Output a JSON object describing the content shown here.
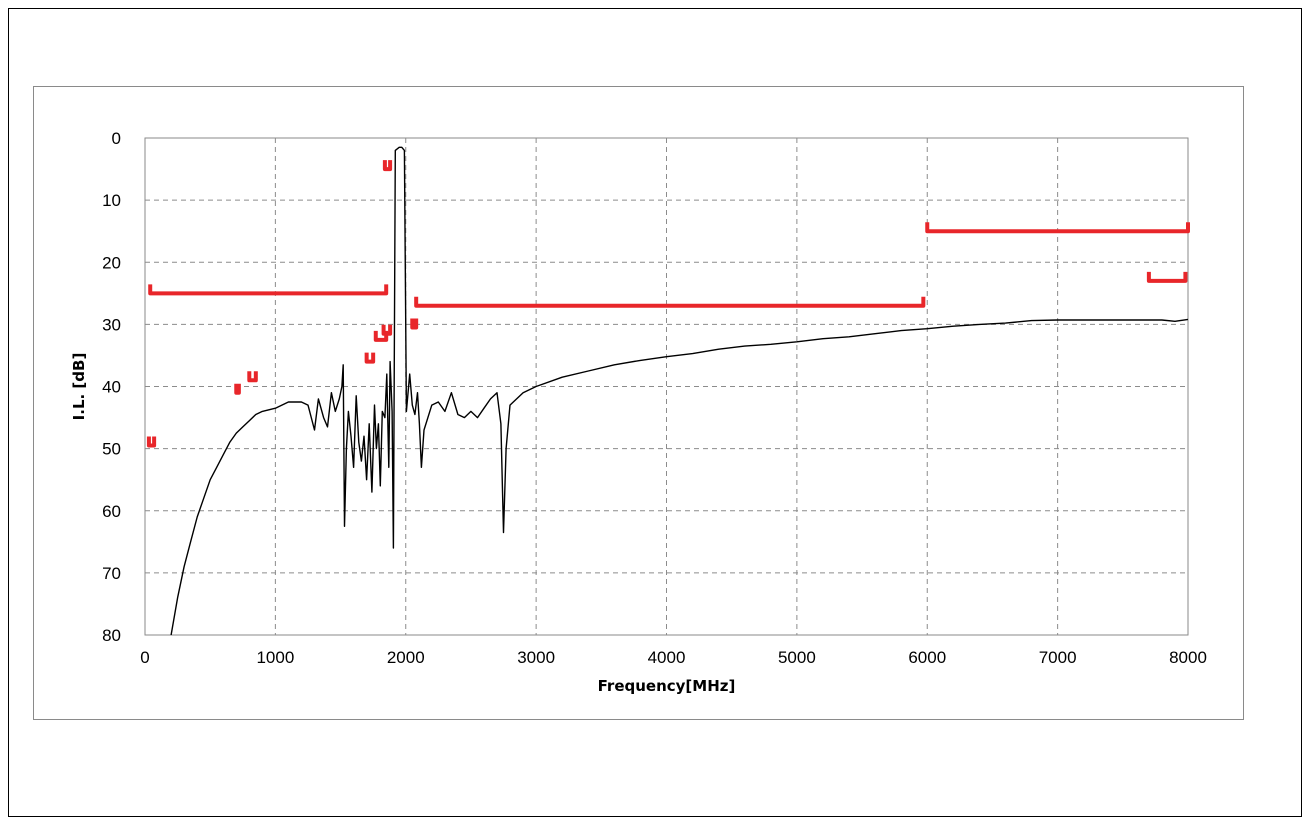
{
  "chart_data": {
    "type": "line",
    "title": "",
    "xlabel": "Frequency[MHz]",
    "ylabel": "I.L. [dB]",
    "xlim": [
      0,
      8000
    ],
    "ylim": [
      0,
      80
    ],
    "y_inverted": true,
    "grid": true,
    "x_ticks": [
      "0",
      "1000",
      "2000",
      "3000",
      "4000",
      "5000",
      "6000",
      "7000",
      "8000"
    ],
    "y_ticks": [
      "0",
      "10",
      "20",
      "30",
      "40",
      "50",
      "60",
      "70",
      "80"
    ],
    "series": [
      {
        "color": "#000000",
        "points": [
          [
            200,
            80
          ],
          [
            250,
            74
          ],
          [
            300,
            69
          ],
          [
            350,
            65
          ],
          [
            400,
            61
          ],
          [
            450,
            58
          ],
          [
            500,
            55
          ],
          [
            550,
            53
          ],
          [
            600,
            51
          ],
          [
            650,
            49
          ],
          [
            700,
            47.5
          ],
          [
            750,
            46.5
          ],
          [
            800,
            45.5
          ],
          [
            850,
            44.5
          ],
          [
            900,
            44
          ],
          [
            1000,
            43.5
          ],
          [
            1100,
            42.5
          ],
          [
            1200,
            42.5
          ],
          [
            1250,
            43
          ],
          [
            1300,
            47
          ],
          [
            1330,
            42
          ],
          [
            1370,
            45
          ],
          [
            1400,
            46.5
          ],
          [
            1430,
            41
          ],
          [
            1460,
            44
          ],
          [
            1490,
            42
          ],
          [
            1510,
            40
          ],
          [
            1520,
            36.5
          ],
          [
            1530,
            62.5
          ],
          [
            1545,
            50
          ],
          [
            1560,
            44
          ],
          [
            1580,
            48
          ],
          [
            1600,
            53
          ],
          [
            1620,
            41.5
          ],
          [
            1640,
            49
          ],
          [
            1660,
            52
          ],
          [
            1680,
            48
          ],
          [
            1700,
            55
          ],
          [
            1720,
            46
          ],
          [
            1740,
            57
          ],
          [
            1760,
            43
          ],
          [
            1775,
            50
          ],
          [
            1790,
            46
          ],
          [
            1805,
            56
          ],
          [
            1820,
            44
          ],
          [
            1840,
            45
          ],
          [
            1855,
            38
          ],
          [
            1870,
            53
          ],
          [
            1880,
            36
          ],
          [
            1895,
            44
          ],
          [
            1905,
            66
          ],
          [
            1920,
            2
          ],
          [
            1950,
            1.5
          ],
          [
            1970,
            1.5
          ],
          [
            1990,
            2
          ],
          [
            2005,
            44
          ],
          [
            2030,
            38
          ],
          [
            2050,
            43
          ],
          [
            2070,
            44.5
          ],
          [
            2090,
            41
          ],
          [
            2105,
            46
          ],
          [
            2120,
            53
          ],
          [
            2140,
            47
          ],
          [
            2170,
            45
          ],
          [
            2200,
            43
          ],
          [
            2250,
            42.5
          ],
          [
            2300,
            44
          ],
          [
            2350,
            41
          ],
          [
            2400,
            44.5
          ],
          [
            2450,
            45
          ],
          [
            2500,
            44
          ],
          [
            2550,
            45
          ],
          [
            2600,
            43.5
          ],
          [
            2650,
            42
          ],
          [
            2700,
            41
          ],
          [
            2730,
            46
          ],
          [
            2750,
            63.5
          ],
          [
            2770,
            50
          ],
          [
            2800,
            43
          ],
          [
            2900,
            41
          ],
          [
            3000,
            40
          ],
          [
            3200,
            38.5
          ],
          [
            3400,
            37.5
          ],
          [
            3600,
            36.5
          ],
          [
            3800,
            35.8
          ],
          [
            4000,
            35.2
          ],
          [
            4200,
            34.7
          ],
          [
            4400,
            34
          ],
          [
            4600,
            33.5
          ],
          [
            4800,
            33.2
          ],
          [
            5000,
            32.8
          ],
          [
            5200,
            32.3
          ],
          [
            5400,
            32
          ],
          [
            5600,
            31.5
          ],
          [
            5800,
            31
          ],
          [
            6000,
            30.7
          ],
          [
            6200,
            30.3
          ],
          [
            6400,
            30
          ],
          [
            6600,
            29.8
          ],
          [
            6800,
            29.4
          ],
          [
            7000,
            29.3
          ],
          [
            7400,
            29.3
          ],
          [
            7800,
            29.3
          ],
          [
            7900,
            29.5
          ],
          [
            8000,
            29.2
          ]
        ]
      }
    ],
    "limit_lines": [
      {
        "color": "#e8262a",
        "x": [
          40,
          1850
        ],
        "y": 25
      },
      {
        "color": "#e8262a",
        "x": [
          2080,
          5970
        ],
        "y": 27
      },
      {
        "color": "#e8262a",
        "x": [
          6000,
          8000
        ],
        "y": 15
      },
      {
        "color": "#e8262a",
        "x": [
          7700,
          7980
        ],
        "y": 23
      },
      {
        "color": "#e8262a",
        "x": [
          1840,
          1880
        ],
        "y": 5
      },
      {
        "color": "#e8262a",
        "x": [
          1770,
          1850
        ],
        "y": 32.5
      },
      {
        "color": "#e8262a",
        "x": [
          1830,
          1880
        ],
        "y": 31.5
      },
      {
        "color": "#e8262a",
        "x": [
          2050,
          2080
        ],
        "y": 30.5
      },
      {
        "color": "#e8262a",
        "x": [
          1700,
          1750
        ],
        "y": 36
      },
      {
        "color": "#e8262a",
        "x": [
          800,
          850
        ],
        "y": 39
      },
      {
        "color": "#e8262a",
        "x": [
          700,
          720
        ],
        "y": 41
      },
      {
        "color": "#e8262a",
        "x": [
          30,
          70
        ],
        "y": 49.5
      }
    ]
  }
}
